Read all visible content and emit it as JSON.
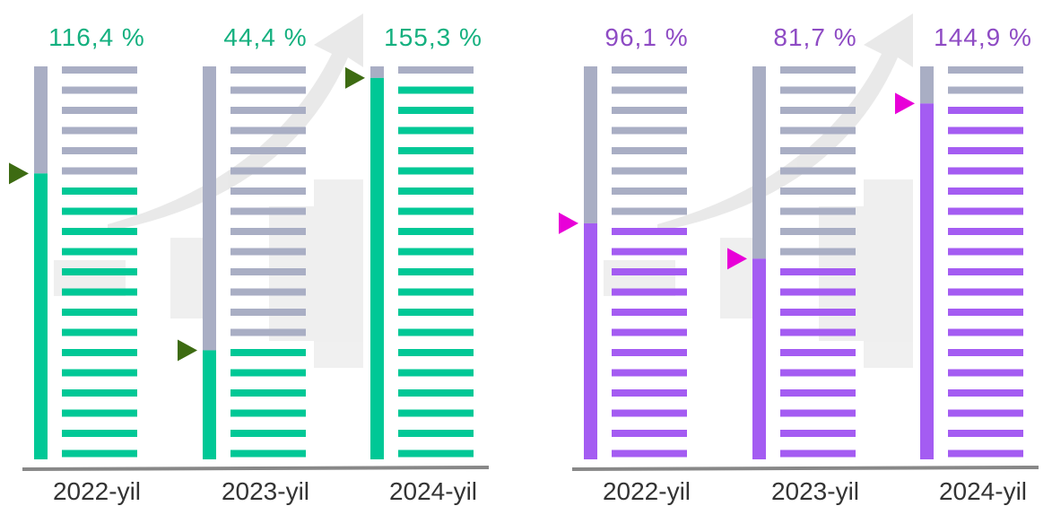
{
  "chart_data": [
    {
      "type": "bar",
      "categories": [
        "2022-yil",
        "2023-yil",
        "2024-yil"
      ],
      "values": [
        116.4,
        44.4,
        155.3
      ],
      "value_labels": [
        "116,4 %",
        "44,4 %",
        "155,3 %"
      ],
      "ylim": [
        0,
        160
      ],
      "accent_color": "#00c896",
      "track_color": "#a9aec4",
      "label_color": "#14b07f",
      "marker_color": "#3d6b12"
    },
    {
      "type": "bar",
      "categories": [
        "2022-yil",
        "2023-yil",
        "2024-yil"
      ],
      "values": [
        96.1,
        81.7,
        144.9
      ],
      "value_labels": [
        "96,1 %",
        "81,7 %",
        "144,9 %"
      ],
      "ylim": [
        0,
        160
      ],
      "accent_color": "#a45cf2",
      "track_color": "#a9aec4",
      "label_color": "#8e4bc4",
      "marker_color": "#e800d8"
    }
  ]
}
